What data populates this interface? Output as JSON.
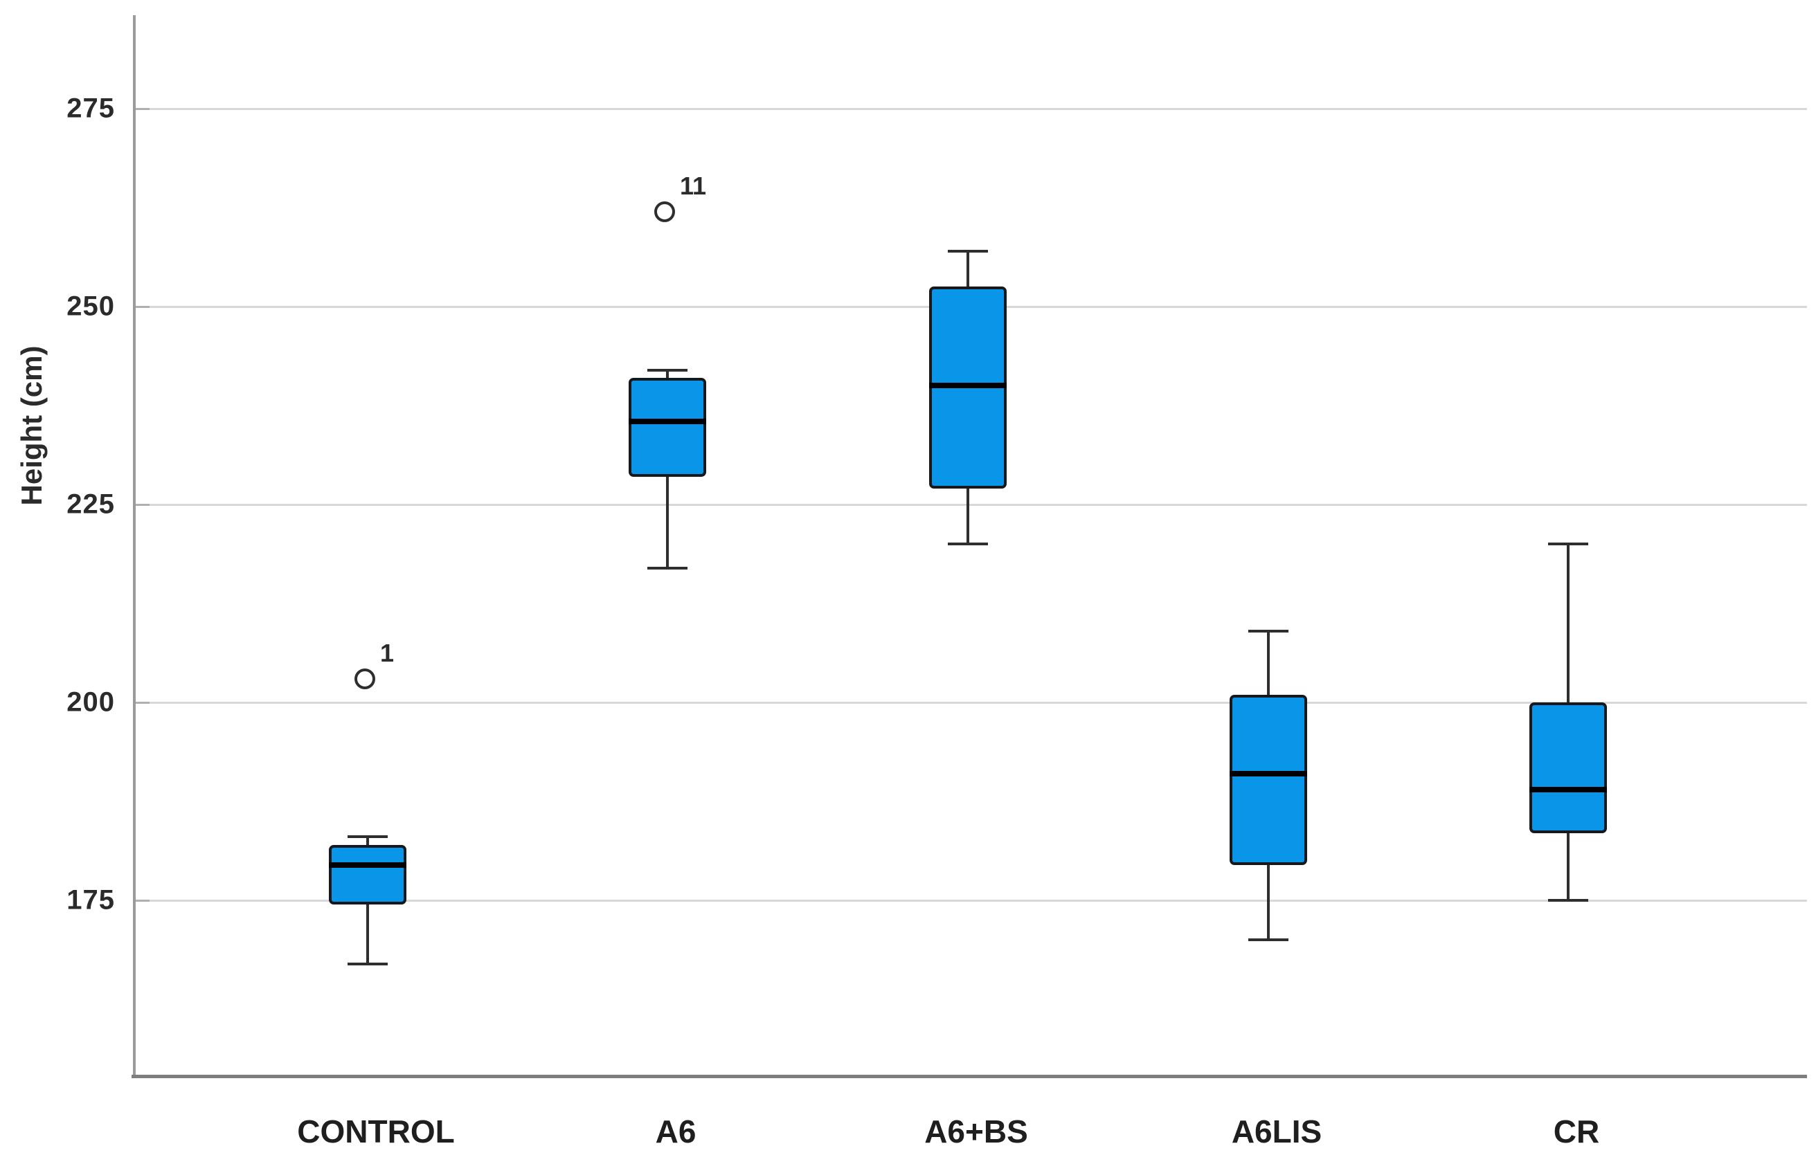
{
  "chart_data": {
    "type": "boxplot",
    "title": "",
    "xlabel": "",
    "ylabel": "Height (cm)",
    "ylim": [
      153,
      287
    ],
    "yticks": [
      175,
      200,
      225,
      250,
      275
    ],
    "grid": "horizontal",
    "categories": [
      "CONTROL",
      "A6",
      "A6+BS",
      "A6LIS",
      "CR"
    ],
    "series": [
      {
        "name": "CONTROL",
        "whisker_low": 167,
        "q1": 174.5,
        "median": 179.5,
        "q3": 182,
        "whisker_high": 183,
        "outliers": [
          {
            "value": 203,
            "label": "1"
          }
        ]
      },
      {
        "name": "A6",
        "whisker_low": 217,
        "q1": 228.5,
        "median": 235.5,
        "q3": 241,
        "whisker_high": 242,
        "outliers": [
          {
            "value": 262,
            "label": "11"
          }
        ]
      },
      {
        "name": "A6+BS",
        "whisker_low": 220,
        "q1": 227,
        "median": 240,
        "q3": 252.5,
        "whisker_high": 257,
        "outliers": []
      },
      {
        "name": "A6LIS",
        "whisker_low": 170,
        "q1": 179.5,
        "median": 191,
        "q3": 201,
        "whisker_high": 209,
        "outliers": []
      },
      {
        "name": "CR",
        "whisker_low": 175,
        "q1": 183.5,
        "median": 189,
        "q3": 200,
        "whisker_high": 220,
        "outliers": []
      }
    ],
    "colors": {
      "box_fill": "#0a96e8",
      "box_border": "#15191d",
      "median_line": "#000000",
      "whisker": "#2e2e2e",
      "gridline": "#d8d8d8",
      "tick_stub": "#b0b0b0",
      "y_axis": "#9b9b9b",
      "x_axis": "#7e7e7e",
      "text": "#2b2b2b",
      "outlier_stroke": "#2e2e2e",
      "outlier_fill": "#ffffff"
    }
  }
}
